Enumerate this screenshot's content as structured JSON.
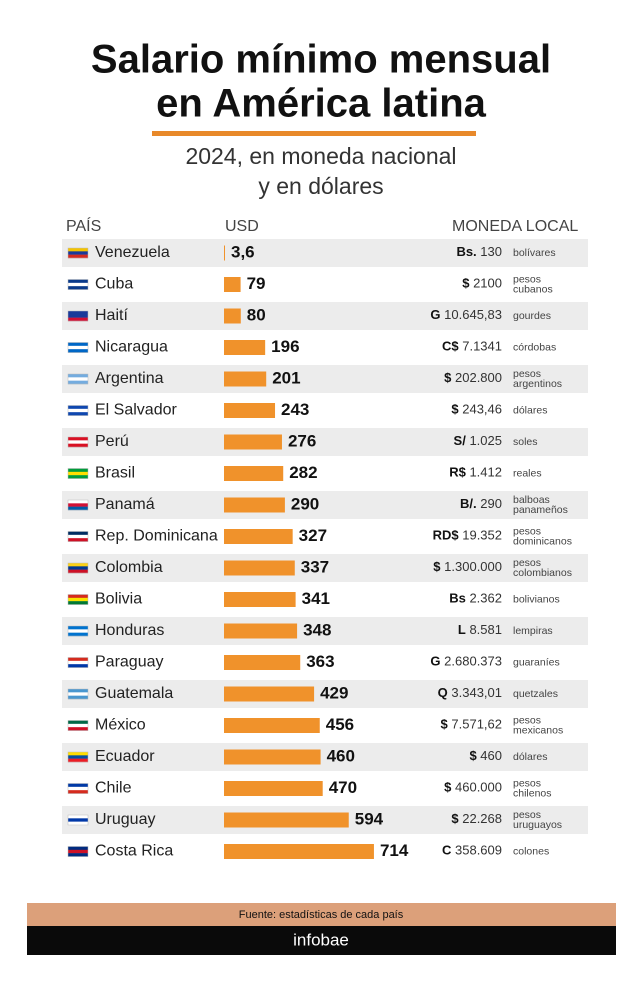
{
  "chart_data": {
    "type": "bar",
    "title": [
      "Salario mínimo mensual",
      "en América latina"
    ],
    "subtitle": [
      "2024, en moneda nacional",
      "y en dólares"
    ],
    "headers": {
      "country": "PAÍS",
      "usd": "USD",
      "local": "MONEDA LOCAL"
    },
    "color": "#f0922b",
    "categories": [
      "Venezuela",
      "Cuba",
      "Haití",
      "Nicaragua",
      "Argentina",
      "El Salvador",
      "Perú",
      "Brasil",
      "Panamá",
      "Rep. Dominicana",
      "Colombia",
      "Bolivia",
      "Honduras",
      "Paraguay",
      "Guatemala",
      "México",
      "Ecuador",
      "Chile",
      "Uruguay",
      "Costa Rica"
    ],
    "values": [
      3.6,
      79,
      80,
      196,
      201,
      243,
      276,
      282,
      290,
      327,
      337,
      341,
      348,
      363,
      429,
      456,
      460,
      470,
      594,
      714
    ],
    "value_labels": [
      "3,6",
      "79",
      "80",
      "196",
      "201",
      "243",
      "276",
      "282",
      "290",
      "327",
      "337",
      "341",
      "348",
      "363",
      "429",
      "456",
      "460",
      "470",
      "594",
      "714"
    ],
    "currency_symbols": [
      "Bs.",
      "$",
      "G",
      "C$",
      "$",
      "$",
      "S/",
      "R$",
      "B/.",
      "RD$",
      "$",
      "Bs",
      "L",
      "G",
      "Q",
      "$",
      "$",
      "$",
      "$",
      "C"
    ],
    "local_amounts": [
      "130",
      "2100",
      "10.645,83",
      "7.1341",
      "202.800",
      "243,46",
      "1.025",
      "1.412",
      "290",
      "19.352",
      "1.300.000",
      "2.362",
      "8.581",
      "2.680.373",
      "3.343,01",
      "7.571,62",
      "460",
      "460.000",
      "22.268",
      "358.609"
    ],
    "currency_names": [
      [
        "bolívares"
      ],
      [
        "pesos",
        "cubanos"
      ],
      [
        "gourdes"
      ],
      [
        "córdobas"
      ],
      [
        "pesos",
        "argentinos"
      ],
      [
        "dólares"
      ],
      [
        "soles"
      ],
      [
        "reales"
      ],
      [
        "balboas",
        "panameños"
      ],
      [
        "pesos",
        "dominicanos"
      ],
      [
        "pesos",
        "colombianos"
      ],
      [
        "bolivianos"
      ],
      [
        "lempiras"
      ],
      [
        "guaraníes"
      ],
      [
        "quetzales"
      ],
      [
        "pesos",
        "mexicanos"
      ],
      [
        "dólares"
      ],
      [
        "pesos",
        "chilenos"
      ],
      [
        "pesos",
        "uruguayos"
      ],
      [
        "colones"
      ]
    ],
    "source": "Fuente: estadísticas de cada país",
    "brand": "infobae"
  }
}
